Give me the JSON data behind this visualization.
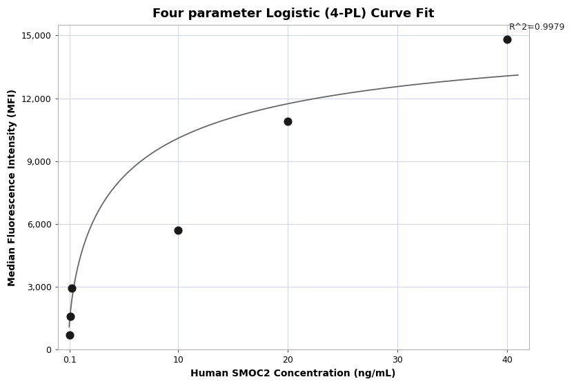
{
  "title": "Four parameter Logistic (4-PL) Curve Fit",
  "xlabel": "Human SMOC2 Concentration (ng/mL)",
  "ylabel": "Median Fluorescence Intensity (MFI)",
  "r_squared_text": "R^2=0.9979",
  "data_points_x": [
    0.1,
    0.15,
    0.3,
    10.0,
    20.0,
    40.0
  ],
  "data_points_y": [
    700,
    1600,
    2950,
    5700,
    10900,
    14800
  ],
  "xlim": [
    -1,
    42
  ],
  "ylim": [
    0,
    15500
  ],
  "yticks": [
    0,
    3000,
    6000,
    9000,
    12000,
    15000
  ],
  "xticks": [
    0.1,
    10,
    20,
    30,
    40
  ],
  "xtick_labels": [
    "0.1",
    "10",
    "20",
    "30",
    "40"
  ],
  "curve_color": "#666666",
  "point_color": "#1a1a1a",
  "point_size": 60,
  "background_color": "#ffffff",
  "grid_color": "#d0d8e8",
  "title_fontsize": 13,
  "label_fontsize": 10,
  "tick_fontsize": 9,
  "annotation_fontsize": 9
}
